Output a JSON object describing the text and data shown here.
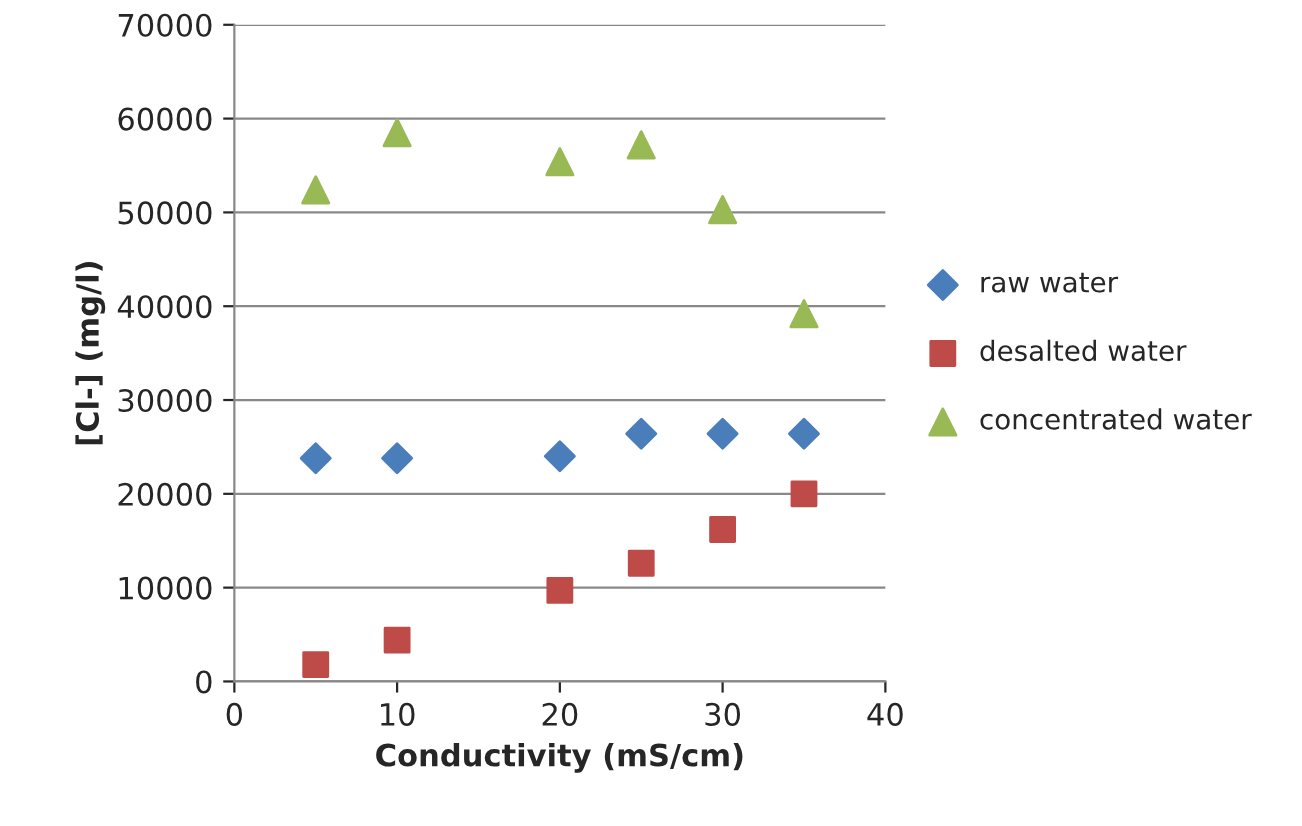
{
  "chart_data": {
    "type": "scatter",
    "xlabel": "Conductivity (mS/cm)",
    "ylabel": "[Cl-] (mg/l)",
    "xlim": [
      0,
      40
    ],
    "xticks": [
      0,
      10,
      20,
      30,
      40
    ],
    "ylim": [
      0,
      70000
    ],
    "yticks": [
      0,
      10000,
      20000,
      30000,
      40000,
      50000,
      60000,
      70000
    ],
    "grid": "y",
    "legend": "right",
    "series": [
      {
        "name": "raw water",
        "color": "#4a7ebb",
        "marker": "diamond",
        "x": [
          5,
          10,
          20,
          25,
          30,
          35
        ],
        "values": [
          23800,
          23800,
          24000,
          26400,
          26400,
          26400
        ]
      },
      {
        "name": "desalted water",
        "color": "#be4b48",
        "marker": "square",
        "x": [
          5,
          10,
          20,
          25,
          30,
          35
        ],
        "values": [
          1800,
          4400,
          9700,
          12600,
          16200,
          20000
        ]
      },
      {
        "name": "concentrated water",
        "color": "#98b954",
        "marker": "triangle",
        "x": [
          5,
          10,
          20,
          25,
          30,
          35
        ],
        "values": [
          52400,
          58500,
          55400,
          57200,
          50300,
          39200
        ]
      }
    ]
  }
}
